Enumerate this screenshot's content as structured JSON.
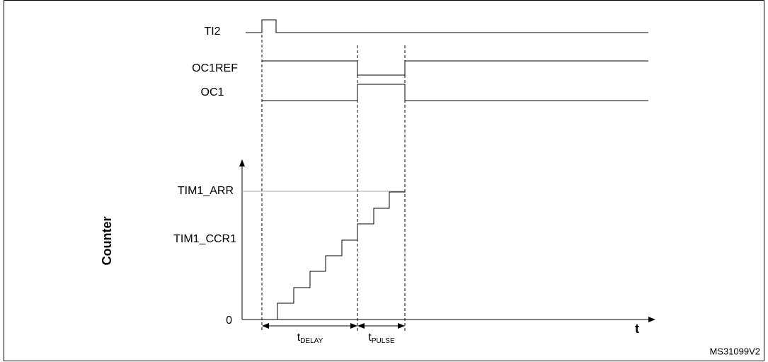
{
  "signals": {
    "ti2": "TI2",
    "oc1ref": "OC1REF",
    "oc1": "OC1"
  },
  "counter": {
    "axis_label": "Counter",
    "arr": "TIM1_ARR",
    "ccr1": "TIM1_CCR1",
    "zero": "0",
    "time_axis": "t"
  },
  "intervals": {
    "delay": {
      "symbol": "t",
      "subscript": "DELAY"
    },
    "pulse": {
      "symbol": "t",
      "subscript": "PULSE"
    }
  },
  "footer": "MS31099V2"
}
